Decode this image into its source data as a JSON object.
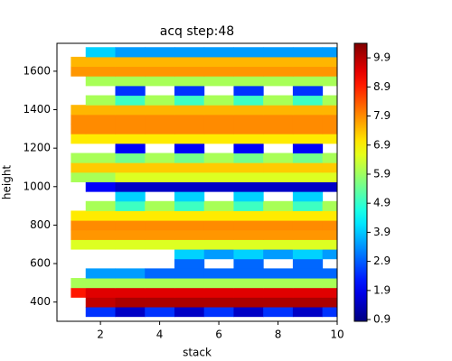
{
  "chart_data": {
    "type": "contour",
    "title": "acq step:48",
    "xlabel": "stack",
    "ylabel": "height",
    "x": [
      1,
      2,
      3,
      4,
      5,
      6,
      7,
      8,
      9,
      10
    ],
    "y": [
      350,
      400,
      450,
      500,
      550,
      600,
      650,
      700,
      750,
      800,
      850,
      900,
      950,
      1000,
      1050,
      1100,
      1150,
      1200,
      1250,
      1300,
      1350,
      1400,
      1450,
      1500,
      1550,
      1600,
      1650,
      1700
    ],
    "z": [
      [
        null,
        2.5,
        1.5,
        2.5,
        1.5,
        2.5,
        1.5,
        2.5,
        1.5,
        2.5
      ],
      [
        null,
        9.8,
        10,
        10,
        10,
        10,
        10,
        10,
        10,
        10
      ],
      [
        9,
        9.5,
        9.5,
        9.5,
        9.5,
        9.5,
        9.5,
        9.5,
        9.5,
        9.5
      ],
      [
        6,
        6,
        6,
        6,
        6,
        6,
        6,
        6,
        6,
        6
      ],
      [
        null,
        3.5,
        3.5,
        3,
        3,
        3,
        3,
        3,
        3,
        3
      ],
      [
        null,
        null,
        null,
        null,
        3,
        null,
        3,
        null,
        3,
        null
      ],
      [
        null,
        null,
        null,
        null,
        4,
        3.5,
        4,
        3.5,
        4,
        3.5
      ],
      [
        6.5,
        6.5,
        6.5,
        6.5,
        6.5,
        6.5,
        6.5,
        6.5,
        6.5,
        6.5
      ],
      [
        7.8,
        7.8,
        7.8,
        7.8,
        7.8,
        7.8,
        7.8,
        7.8,
        7.8,
        7.8
      ],
      [
        7.9,
        7.9,
        7.9,
        7.9,
        7.9,
        7.9,
        7.9,
        7.9,
        7.9,
        7.9
      ],
      [
        7,
        7,
        7,
        7,
        7,
        7,
        7,
        7,
        7,
        7
      ],
      [
        null,
        6,
        5,
        6,
        5,
        6,
        5,
        6,
        5,
        6
      ],
      [
        null,
        null,
        4,
        null,
        4,
        null,
        4,
        null,
        4,
        null
      ],
      [
        null,
        2,
        1.5,
        1.5,
        1.5,
        1.5,
        1.5,
        1.5,
        1.5,
        1.5
      ],
      [
        6,
        6,
        6.5,
        6.5,
        6.5,
        6.5,
        6.5,
        6.5,
        6.5,
        6.5
      ],
      [
        7.3,
        7.3,
        7.3,
        7.3,
        7.3,
        7.3,
        7.3,
        7.3,
        7.3,
        7.3
      ],
      [
        6,
        6,
        5.5,
        6,
        5.5,
        6,
        5.5,
        6,
        5.5,
        6
      ],
      [
        null,
        null,
        2,
        null,
        2,
        null,
        2,
        null,
        2,
        null
      ],
      [
        7,
        7,
        7,
        7,
        7,
        7,
        7,
        7,
        7,
        7
      ],
      [
        7.9,
        7.9,
        7.9,
        7.9,
        7.9,
        7.9,
        7.9,
        7.9,
        7.9,
        7.9
      ],
      [
        7.9,
        7.9,
        7.9,
        7.9,
        7.9,
        7.9,
        7.9,
        7.9,
        7.9,
        7.9
      ],
      [
        7.5,
        7.5,
        7.5,
        7.5,
        7.5,
        7.5,
        7.5,
        7.5,
        7.5,
        7.5
      ],
      [
        null,
        6,
        5,
        6,
        5,
        6,
        5,
        6,
        5,
        6
      ],
      [
        null,
        null,
        2.5,
        null,
        2.5,
        null,
        2.5,
        null,
        2.5,
        null
      ],
      [
        null,
        6,
        6,
        6,
        6,
        6,
        6,
        6,
        6,
        6
      ],
      [
        7.8,
        7.8,
        7.8,
        7.8,
        7.8,
        7.8,
        7.8,
        7.8,
        7.8,
        7.8
      ],
      [
        7.5,
        7.5,
        7.5,
        7.5,
        7.5,
        7.5,
        7.5,
        7.5,
        7.5,
        7.5
      ],
      [
        null,
        4,
        3.5,
        3.5,
        3.5,
        3.5,
        3.5,
        3.5,
        3.5,
        3.5
      ]
    ],
    "xlim": [
      0.53,
      10
    ],
    "ylim": [
      300,
      1745
    ],
    "xticks": [
      2,
      4,
      6,
      8,
      10
    ],
    "yticks": [
      400,
      600,
      800,
      1000,
      1200,
      1400,
      1600
    ],
    "colormap": "jet",
    "colorbar": {
      "lim": [
        0.84,
        10.4
      ],
      "ticks": [
        0.9,
        1.9,
        2.9,
        3.9,
        4.9,
        5.9,
        6.9,
        7.9,
        8.9,
        9.9
      ]
    }
  }
}
